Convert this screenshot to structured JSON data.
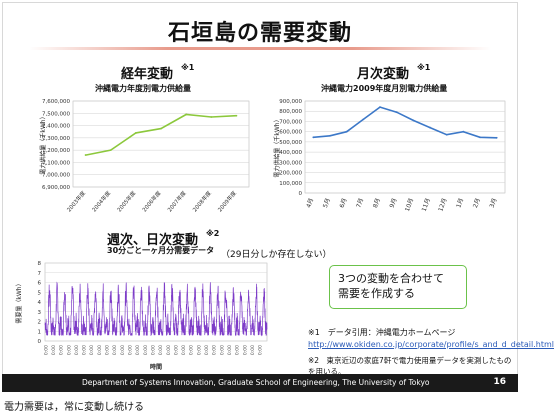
{
  "slide": {
    "title": "石垣島の需要変動",
    "footer": "Department of Systems Innovation, Graduate School of Engineering, The University of Tokyo",
    "page_number": "16",
    "caption": "電力需要は，常に変動し続ける"
  },
  "annual": {
    "heading": "経年変動",
    "note": "※1",
    "subtitle": "沖縄電力年度別電力供給量"
  },
  "monthly": {
    "heading": "月次変動",
    "note": "※1",
    "subtitle": "沖縄電力2009年度月別電力供給量"
  },
  "weekly": {
    "heading": "週次、日次変動",
    "note": "※2",
    "subtitle": "30分ごと一ヶ月分需要データ",
    "missing_note": "（29日分しか存在しない）"
  },
  "callout": {
    "line1": "3つの変動を合わせて",
    "line2": "需要を作成する"
  },
  "footnotes": {
    "note1": "※1　データ引用：沖縄電力ホームページ",
    "note1_url": "http://www.okiden.co.jp/corporate/profile/s_and_d_detail.html",
    "note2": "※2　東京近辺の家庭7軒で電力使用量データを実測したものを用いる。"
  },
  "chart_data": [
    {
      "type": "line",
      "title": "沖縄電力年度別電力供給量",
      "ylabel": "電力供給量（千kWh）",
      "categories": [
        "2003年度",
        "2004年度",
        "2005年度",
        "2006年度",
        "2007年度",
        "2008年度",
        "2009年度"
      ],
      "values": [
        7160000,
        7200000,
        7340000,
        7375000,
        7490000,
        7470000,
        7480000
      ],
      "y_ticks": [
        "6,900,000",
        "7,000,000",
        "7,100,000",
        "7,200,000",
        "7,300,000",
        "7,400,000",
        "7,500,000",
        "7,600,000"
      ],
      "ylim": [
        6900000,
        7600000
      ],
      "color": "#8cc83c",
      "grid": true
    },
    {
      "type": "line",
      "title": "沖縄電力2009年度月別電力供給量",
      "ylabel": "電力供給量（千kWh）",
      "categories": [
        "4月",
        "5月",
        "6月",
        "7月",
        "8月",
        "9月",
        "10月",
        "11月",
        "12月",
        "1月",
        "2月",
        "3月"
      ],
      "values": [
        545000,
        560000,
        600000,
        720000,
        840000,
        790000,
        710000,
        640000,
        570000,
        600000,
        545000,
        540000
      ],
      "y_ticks": [
        "0",
        "100,000",
        "200,000",
        "300,000",
        "400,000",
        "500,000",
        "600,000",
        "700,000",
        "800,000",
        "900,000"
      ],
      "ylim": [
        0,
        900000
      ],
      "color": "#3c78c8",
      "grid": true
    },
    {
      "type": "line",
      "title": "30分ごと一ヶ月分需要データ",
      "xlabel": "時間",
      "ylabel": "需要量（kWh）",
      "y_ticks": [
        "0",
        "1",
        "2",
        "3",
        "4",
        "5",
        "6",
        "7",
        "8"
      ],
      "ylim": [
        0,
        8
      ],
      "x_tick_label": "0:00",
      "x_tick_count": 29,
      "points_per_day": 48,
      "days": 29,
      "pattern": "daily cycle: low ~1.5-2 kWh at night, peaks ~5-7 kWh in evening",
      "color": "#7d3cc8",
      "grid": true
    }
  ]
}
